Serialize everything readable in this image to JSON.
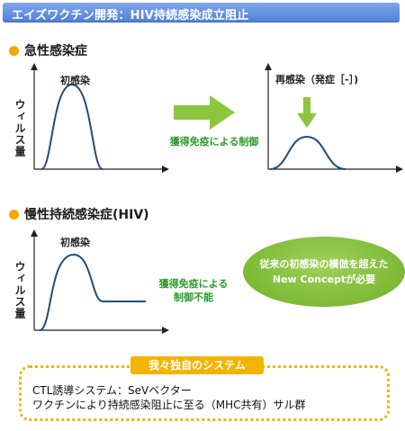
{
  "title": "エイズワクチン開発：HIV持続感染成立阻止",
  "acute": {
    "heading": "急性感染症",
    "y_axis_label": "ウィルス量",
    "initial_infection_label": "初感染",
    "reinfection_label": "再感染（発症［-］)",
    "control_label": "獲得免疫による制御"
  },
  "chronic": {
    "heading": "慢性持続感染症(HIV)",
    "y_axis_label": "ウィルス量",
    "initial_infection_label": "初感染",
    "no_control_label_line1": "獲得免疫による",
    "no_control_label_line2": "制御不能",
    "concept_line1": "従来の初感染の模倣を超えた",
    "concept_line2": "New Conceptが必要"
  },
  "system": {
    "tag": "我々独自のシステム",
    "line1": "CTL誘導システム：SeVベクター",
    "line2": "ワクチンにより持続感染阻止に至る（MHC共有）サル群"
  },
  "colors": {
    "title_bar": "#5b8ae0",
    "bullet": "#f5a800",
    "curve": "#1f4e79",
    "arrow_green": "#8cc63f",
    "concept_green": "#7ab833",
    "system_border": "#f2b400"
  }
}
